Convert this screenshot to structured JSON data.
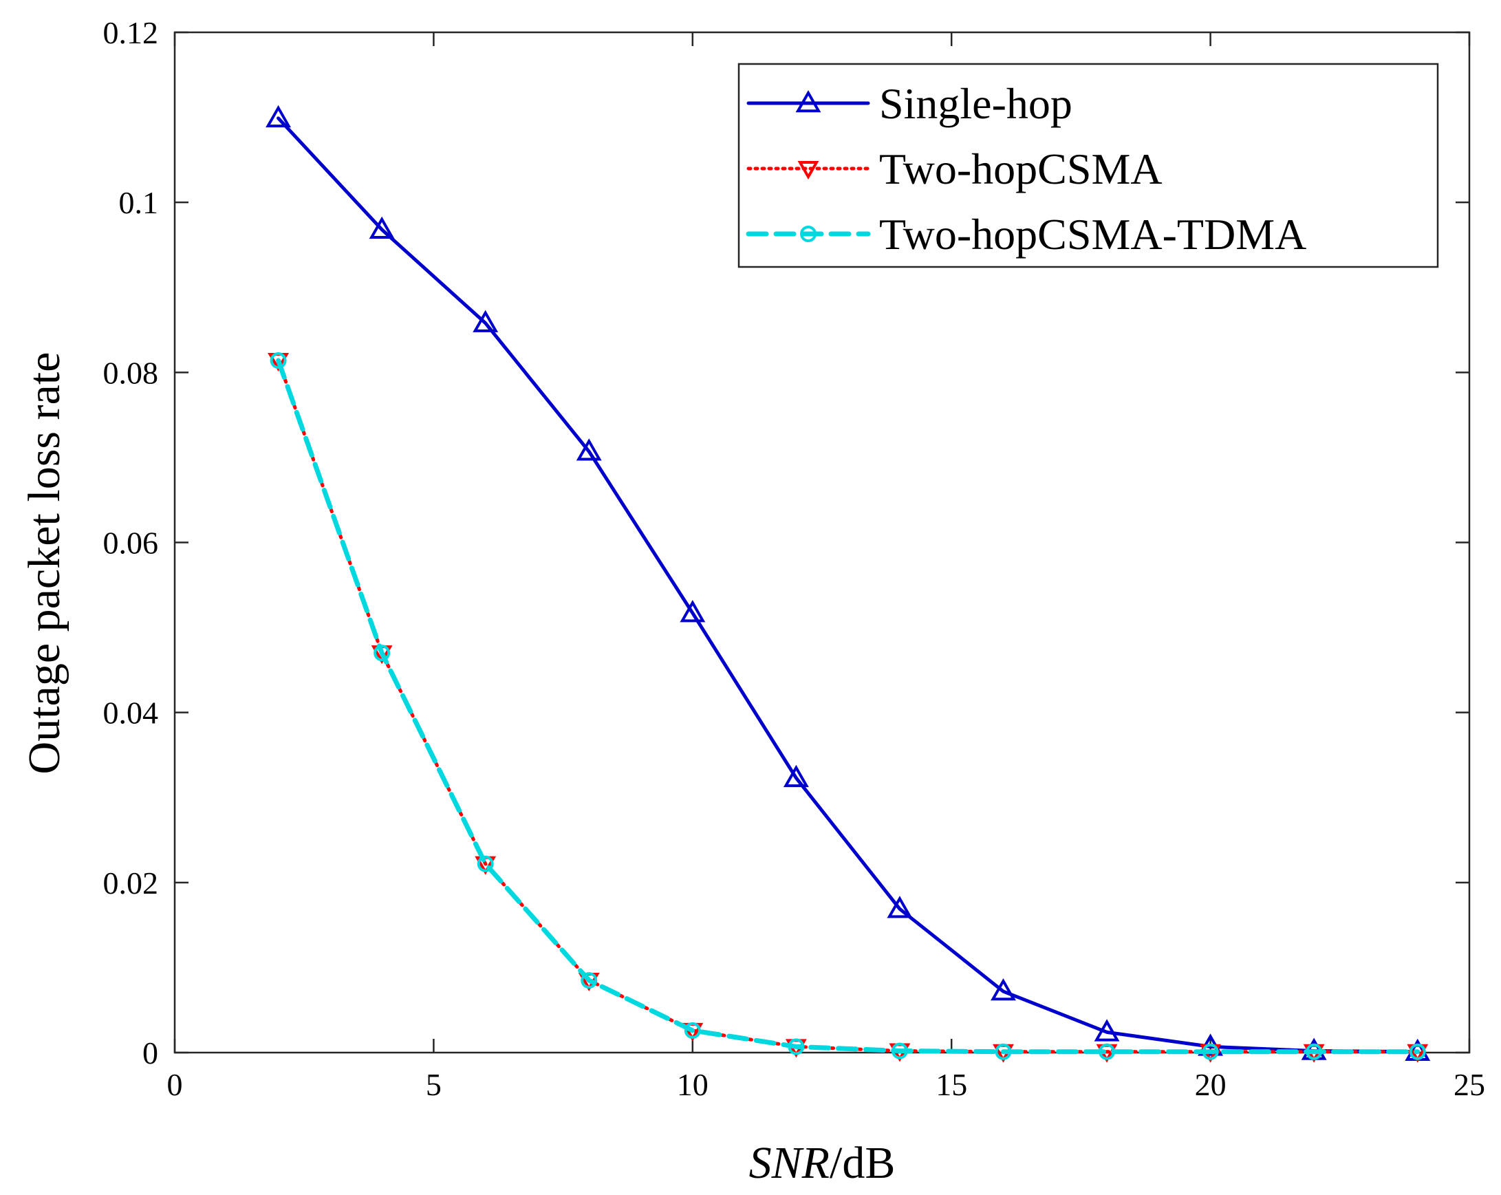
{
  "chart_data": {
    "type": "line",
    "title": "",
    "xlabel": "SNR/dB",
    "xlabel_italic_part": "SNR",
    "xlabel_unit_part": "/dB",
    "ylabel": "Outage packet loss rate",
    "xlim": [
      0,
      25
    ],
    "ylim": [
      0,
      0.12
    ],
    "xticks": [
      0,
      5,
      10,
      15,
      20,
      25
    ],
    "xtick_labels": [
      "0",
      "5",
      "10",
      "15",
      "20",
      "25"
    ],
    "yticks": [
      0,
      0.02,
      0.04,
      0.06,
      0.08,
      0.1,
      0.12
    ],
    "ytick_labels": [
      "0",
      "0.02",
      "0.04",
      "0.06",
      "0.08",
      "0.1",
      "0.12"
    ],
    "grid": false,
    "legend_position": "top-right",
    "x": [
      2,
      4,
      6,
      8,
      10,
      12,
      14,
      16,
      18,
      20,
      22,
      24
    ],
    "series": [
      {
        "name": "Single-hop",
        "color": "#0000CC",
        "line_style": "solid",
        "marker": "triangle-up",
        "values": [
          0.1099,
          0.0968,
          0.0858,
          0.0707,
          0.0517,
          0.0323,
          0.0169,
          0.0072,
          0.0024,
          0.0007,
          0.0002,
          0.0001
        ]
      },
      {
        "name": "Two-hopCSMA",
        "color": "#FF0000",
        "line_style": "dotted",
        "marker": "triangle-down",
        "values": [
          0.0814,
          0.047,
          0.0222,
          0.0085,
          0.0026,
          0.0007,
          0.0002,
          0.0001,
          0.0001,
          0.0001,
          0.0001,
          0.0001
        ]
      },
      {
        "name": "Two-hopCSMA-TDMA",
        "color": "#00D8E0",
        "line_style": "dashed",
        "marker": "circle",
        "values": [
          0.0814,
          0.047,
          0.0222,
          0.0085,
          0.0026,
          0.0007,
          0.0002,
          0.0001,
          0.0001,
          0.0001,
          0.0001,
          0.0001
        ]
      }
    ]
  }
}
